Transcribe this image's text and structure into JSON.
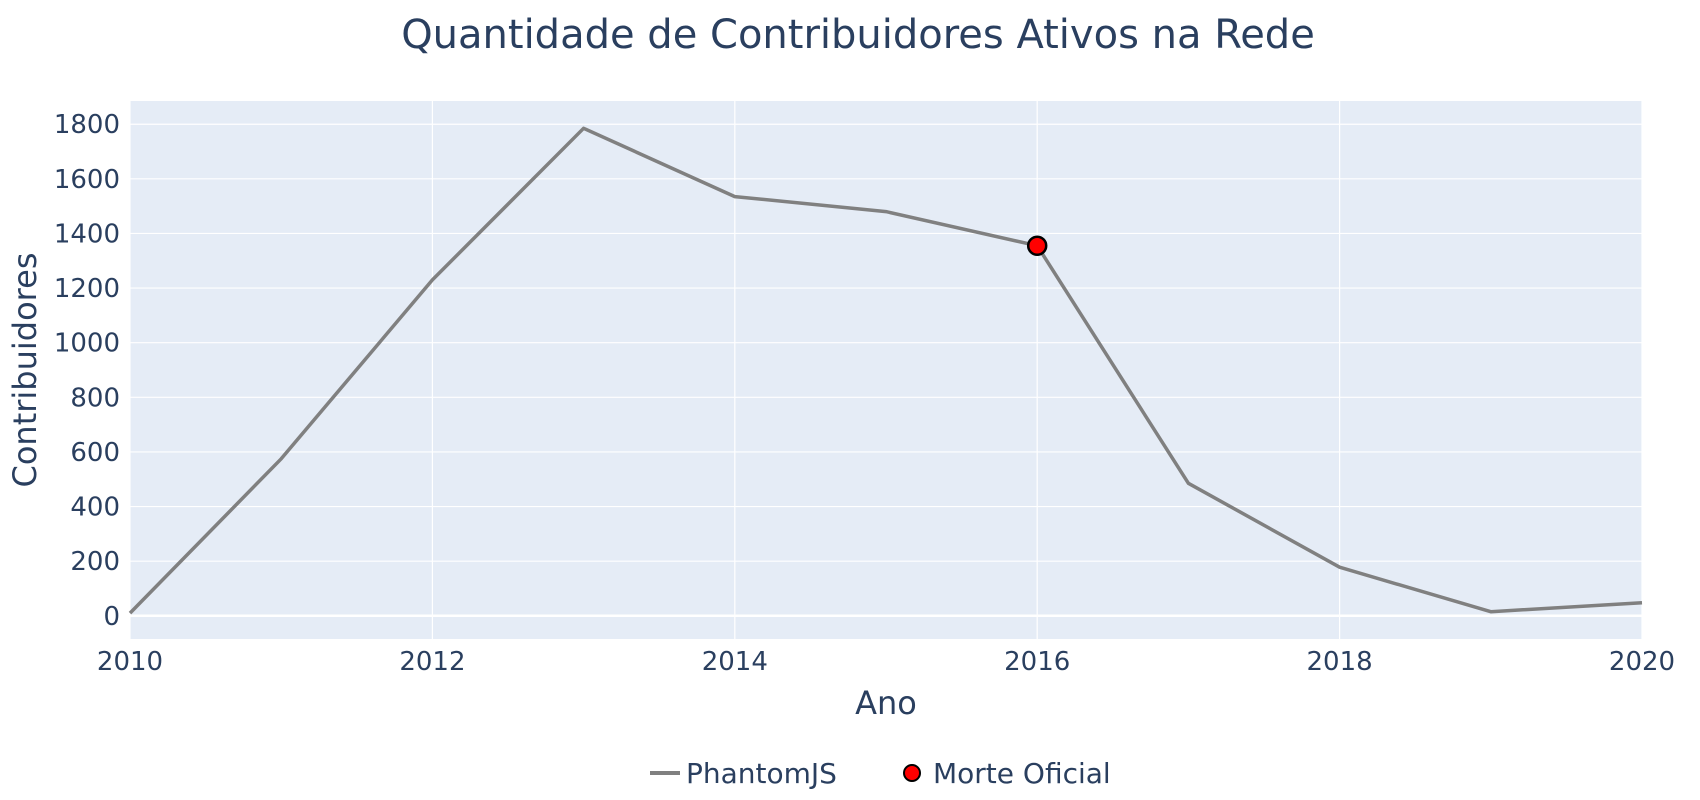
{
  "chart_data": {
    "type": "line",
    "title": "Quantidade de Contribuidores Ativos na Rede",
    "xlabel": "Ano",
    "ylabel": "Contribuidores",
    "xlim": [
      2010,
      2020
    ],
    "ylim": [
      -85,
      1885
    ],
    "x_ticks": [
      "2010",
      "2012",
      "2014",
      "2016",
      "2018",
      "2020"
    ],
    "y_ticks": [
      "0",
      "200",
      "400",
      "600",
      "800",
      "1000",
      "1200",
      "1400",
      "1600",
      "1800"
    ],
    "grid": true,
    "legend_position": "bottom-center",
    "series": [
      {
        "name": "PhantomJS",
        "mode": "lines",
        "color": "#808080",
        "x": [
          2010,
          2011,
          2012,
          2013,
          2014,
          2015,
          2016,
          2017,
          2018,
          2019,
          2020
        ],
        "y": [
          10,
          575,
          1230,
          1785,
          1535,
          1480,
          1355,
          485,
          178,
          15,
          48
        ]
      },
      {
        "name": "Morte Oficial",
        "mode": "markers",
        "color": "#ff0000",
        "x": [
          2016
        ],
        "y": [
          1355
        ]
      }
    ]
  }
}
